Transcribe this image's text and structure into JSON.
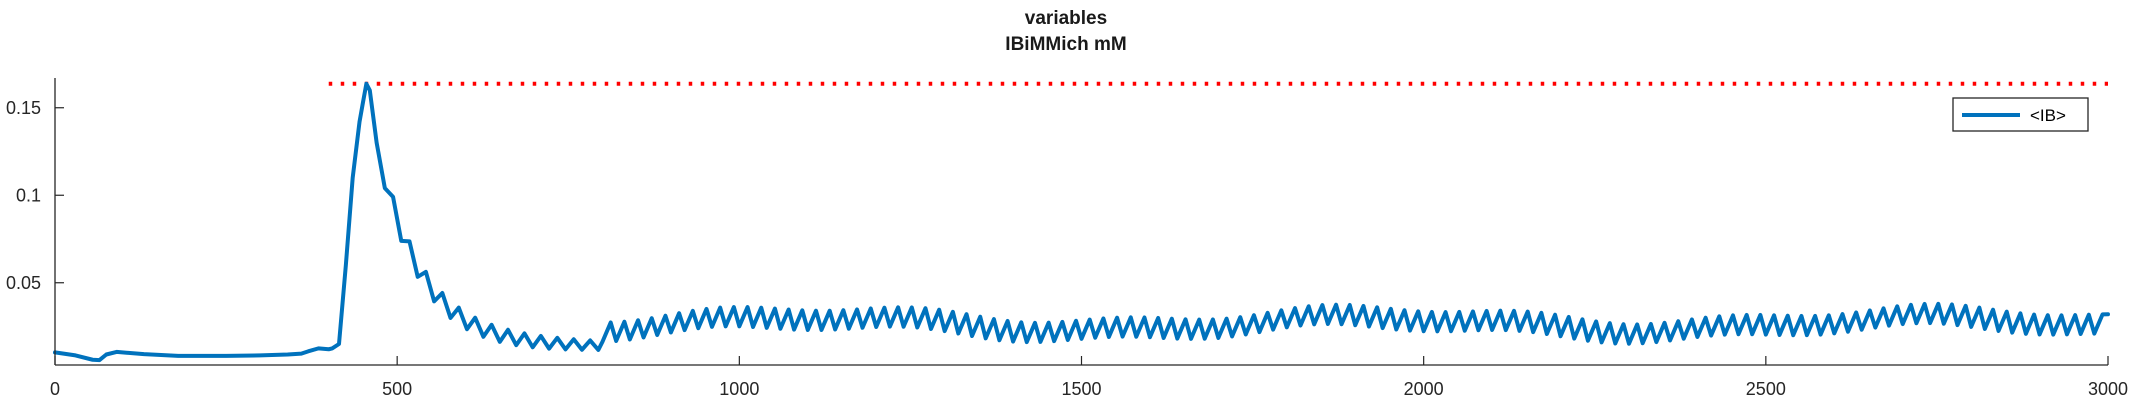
{
  "chart_data": {
    "type": "line",
    "title": "variables",
    "subtitle": "IBiMMich mM",
    "xlabel": "",
    "ylabel": "",
    "xlim": [
      0,
      3000
    ],
    "ylim": [
      0.003,
      0.167
    ],
    "xticks": [
      0,
      500,
      1000,
      1500,
      2000,
      2500,
      3000
    ],
    "yticks": [
      0.05,
      0.1,
      0.15
    ],
    "ytick_labels": [
      "0.05",
      "0.1",
      "0.15"
    ],
    "grid": false,
    "legend": {
      "position": "top-right",
      "entries": [
        "<IB>"
      ]
    },
    "colors": {
      "series": "#0072BD",
      "threshold": "#ff0000",
      "axis": "#262626"
    },
    "threshold": {
      "value": 0.1637,
      "x_start": 400,
      "x_end": 3000,
      "style": "dotted"
    },
    "series": [
      {
        "name": "<IB>",
        "baseline_points": [
          [
            0,
            0.0102
          ],
          [
            30,
            0.0085
          ],
          [
            55,
            0.006
          ],
          [
            65,
            0.0058
          ],
          [
            75,
            0.009
          ],
          [
            90,
            0.0105
          ],
          [
            130,
            0.0092
          ],
          [
            180,
            0.0082
          ],
          [
            250,
            0.0082
          ],
          [
            300,
            0.0085
          ],
          [
            340,
            0.009
          ],
          [
            360,
            0.0095
          ],
          [
            370,
            0.0108
          ],
          [
            385,
            0.0125
          ],
          [
            400,
            0.012
          ],
          [
            405,
            0.0125
          ],
          [
            415,
            0.015
          ],
          [
            425,
            0.06
          ],
          [
            435,
            0.11
          ],
          [
            445,
            0.142
          ],
          [
            450,
            0.153
          ],
          [
            455,
            0.1637
          ],
          [
            460,
            0.16
          ],
          [
            470,
            0.13
          ]
        ],
        "decay": {
          "x_start": 470,
          "x_end": 800,
          "y_start": 0.13,
          "y_end": 0.0135,
          "step": 12,
          "amp_start": 0.006,
          "amp_end": 0.0025
        },
        "oscillation": {
          "x_start": 800,
          "x_end": 3000,
          "step": 20,
          "mean": 0.0265,
          "amp": 0.0055
        },
        "final_point": [
          3000,
          0.032
        ]
      }
    ]
  }
}
